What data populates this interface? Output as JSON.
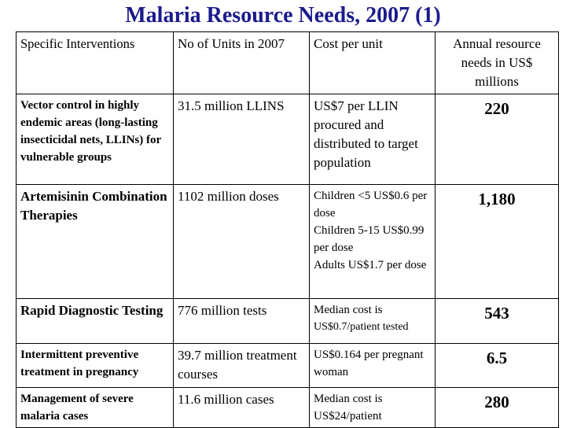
{
  "title": "Malaria Resource Needs, 2007 (1)",
  "table": {
    "header": [
      "Specific Interventions",
      "No of Units in 2007",
      "Cost per unit",
      "Annual resource needs in US$ millions"
    ],
    "rows": [
      [
        "Vector control in highly endemic areas (long-lasting insecticidal nets, LLINs) for vulnerable groups",
        "31.5 million LLINS",
        [
          "US$7 per LLIN procured and distributed to target population"
        ],
        "220"
      ],
      [
        "Artemisinin Combination Therapies",
        "1102 million doses",
        [
          "Children <5 US$0.6 per dose",
          "Children 5-15 US$0.99 per dose",
          "Adults US$1.7 per dose"
        ],
        "1,180"
      ],
      [
        "Rapid Diagnostic Testing",
        "776 million tests",
        [
          "Median cost is",
          "US$0.7/patient tested"
        ],
        "543"
      ],
      [
        "Intermittent preventive treatment in pregnancy",
        "39.7 million treatment courses",
        [
          "US$0.164 per pregnant woman"
        ],
        "6.5"
      ],
      [
        "Management of severe malaria cases",
        "11.6 million cases",
        [
          "Median cost is US$24/patient"
        ],
        "280"
      ]
    ]
  }
}
